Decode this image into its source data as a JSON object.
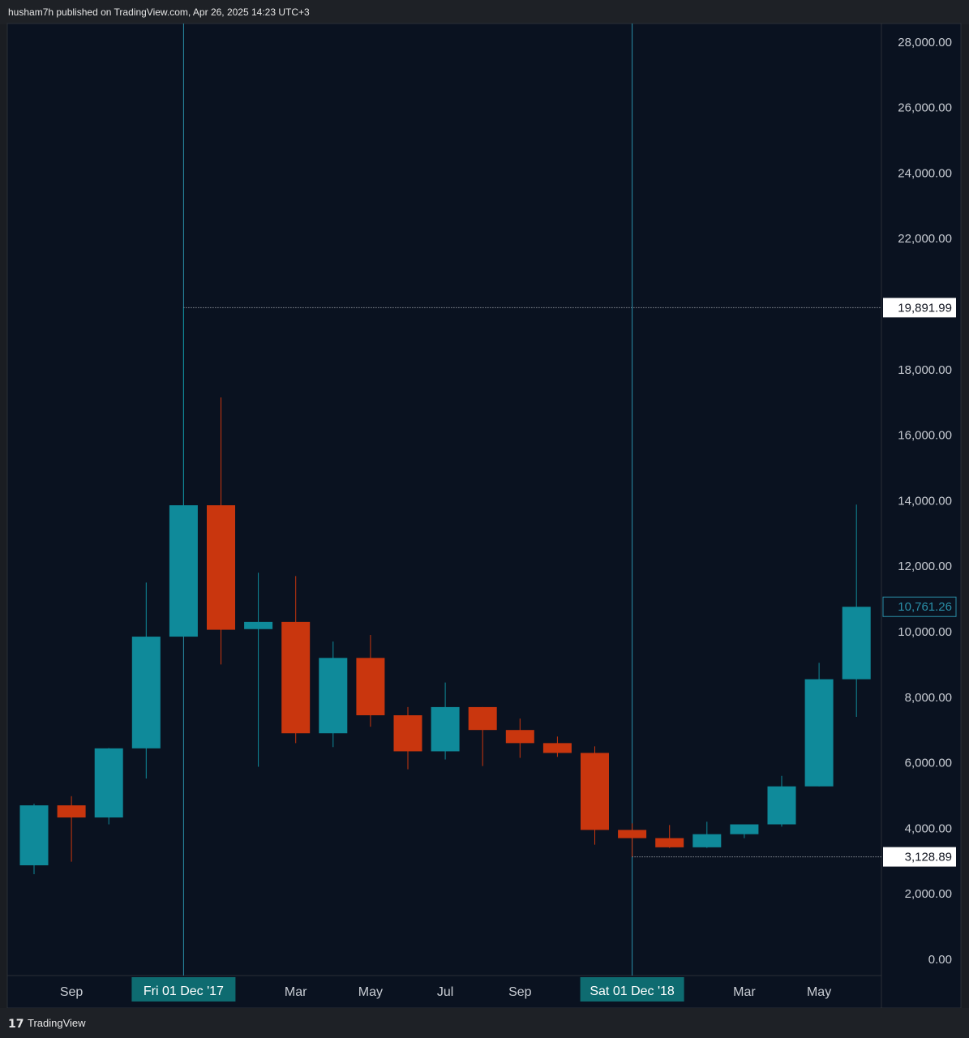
{
  "header": {
    "publish_text": "husham7h published on TradingView.com, Apr 26, 2025 14:23 UTC+3"
  },
  "footer": {
    "logo_text": "TradingView"
  },
  "colors": {
    "background": "#0a1220",
    "up": "#0f8a9a",
    "down": "#c9360e",
    "crosshair": "#2a8fa8",
    "label_bg": "#0e6b70",
    "last_price_text": "#2a8fa8"
  },
  "chart_data": {
    "type": "candlestick",
    "interval": "1M",
    "ylim": [
      -500,
      28800
    ],
    "y_ticks": [
      0,
      2000,
      4000,
      6000,
      8000,
      10000,
      12000,
      14000,
      16000,
      18000,
      22000,
      24000,
      26000,
      28000
    ],
    "y_tick_labels": [
      "0.00",
      "2,000.00",
      "4,000.00",
      "6,000.00",
      "8,000.00",
      "10,000.00",
      "12,000.00",
      "14,000.00",
      "16,000.00",
      "18,000.00",
      "22,000.00",
      "24,000.00",
      "26,000.00",
      "28,000.00"
    ],
    "candles": [
      {
        "date": "2017-08",
        "open": 2870,
        "high": 4750,
        "low": 2600,
        "close": 4700
      },
      {
        "date": "2017-09",
        "open": 4700,
        "high": 4980,
        "low": 2980,
        "close": 4330
      },
      {
        "date": "2017-10",
        "open": 4330,
        "high": 6450,
        "low": 4120,
        "close": 6440
      },
      {
        "date": "2017-11",
        "open": 6440,
        "high": 11500,
        "low": 5520,
        "close": 9850
      },
      {
        "date": "2017-12",
        "open": 9850,
        "high": 19892,
        "low": 9850,
        "close": 13860
      },
      {
        "date": "2018-01",
        "open": 13860,
        "high": 17150,
        "low": 9000,
        "close": 10060
      },
      {
        "date": "2018-02",
        "open": 10080,
        "high": 11800,
        "low": 5880,
        "close": 10300
      },
      {
        "date": "2018-03",
        "open": 10300,
        "high": 11700,
        "low": 6600,
        "close": 6900
      },
      {
        "date": "2018-04",
        "open": 6900,
        "high": 9700,
        "low": 6480,
        "close": 9200
      },
      {
        "date": "2018-05",
        "open": 9200,
        "high": 9900,
        "low": 7100,
        "close": 7450
      },
      {
        "date": "2018-06",
        "open": 7450,
        "high": 7700,
        "low": 5800,
        "close": 6350
      },
      {
        "date": "2018-07",
        "open": 6350,
        "high": 8450,
        "low": 6100,
        "close": 7700
      },
      {
        "date": "2018-08",
        "open": 7700,
        "high": 7700,
        "low": 5900,
        "close": 7000
      },
      {
        "date": "2018-09",
        "open": 7000,
        "high": 7350,
        "low": 6150,
        "close": 6600
      },
      {
        "date": "2018-10",
        "open": 6600,
        "high": 6800,
        "low": 6180,
        "close": 6300
      },
      {
        "date": "2018-11",
        "open": 6300,
        "high": 6500,
        "low": 3500,
        "close": 3950
      },
      {
        "date": "2018-12",
        "open": 3950,
        "high": 4150,
        "low": 3129,
        "close": 3700
      },
      {
        "date": "2019-01",
        "open": 3700,
        "high": 4100,
        "low": 3400,
        "close": 3420
      },
      {
        "date": "2019-02",
        "open": 3420,
        "high": 4200,
        "low": 3400,
        "close": 3820
      },
      {
        "date": "2019-03",
        "open": 3820,
        "high": 4100,
        "low": 3700,
        "close": 4120
      },
      {
        "date": "2019-04",
        "open": 4120,
        "high": 5600,
        "low": 4050,
        "close": 5280
      },
      {
        "date": "2019-05",
        "open": 5280,
        "high": 9050,
        "low": 5280,
        "close": 8550
      },
      {
        "date": "2019-06",
        "open": 8550,
        "high": 13880,
        "low": 7400,
        "close": 10761
      }
    ],
    "x_labels": [
      {
        "index": 1,
        "text": "Sep"
      },
      {
        "index": 7,
        "text": "Mar"
      },
      {
        "index": 9,
        "text": "May"
      },
      {
        "index": 11,
        "text": "Jul"
      },
      {
        "index": 13,
        "text": "Sep"
      },
      {
        "index": 19,
        "text": "Mar"
      },
      {
        "index": 21,
        "text": "May"
      }
    ],
    "crosshairs": [
      {
        "index": 4,
        "label": "Fri 01 Dec '17",
        "hline_value": 19891.99
      },
      {
        "index": 16,
        "label": "Sat 01 Dec '18",
        "hline_value": 3128.89
      }
    ],
    "price_labels": [
      {
        "value": 19891.99,
        "text": "19,891.99",
        "style": "white"
      },
      {
        "value": 10761.26,
        "text": "10,761.26",
        "style": "last"
      },
      {
        "value": 3128.89,
        "text": "3,128.89",
        "style": "white"
      }
    ]
  }
}
